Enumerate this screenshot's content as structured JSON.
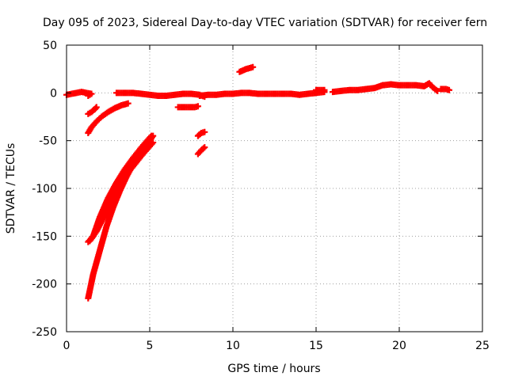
{
  "chart_data": {
    "type": "scatter",
    "title": "Day 095 of 2023, Sidereal Day-to-day VTEC variation (SDTVAR) for receiver fern",
    "xlabel": "GPS time / hours",
    "ylabel": "SDTVAR / TECUs",
    "xlim": [
      0,
      25
    ],
    "ylim": [
      -250,
      50
    ],
    "xticks": [
      0,
      5,
      10,
      15,
      20,
      25
    ],
    "yticks": [
      -250,
      -200,
      -150,
      -100,
      -50,
      0,
      50
    ],
    "grid": true,
    "legend": "none",
    "series_color": "#ff0000",
    "marker": "plus",
    "segments": [
      {
        "name": "",
        "points": [
          [
            0.0,
            -2
          ],
          [
            0.3,
            -1
          ],
          [
            0.6,
            0
          ],
          [
            0.9,
            1
          ],
          [
            1.2,
            0
          ],
          [
            1.5,
            -1
          ],
          [
            1.3,
            -3
          ]
        ]
      },
      {
        "name": "",
        "points": [
          [
            1.3,
            -22
          ],
          [
            1.5,
            -20
          ],
          [
            1.7,
            -17
          ],
          [
            1.8,
            -15
          ]
        ]
      },
      {
        "name": "",
        "points": [
          [
            1.3,
            -42
          ],
          [
            1.5,
            -36
          ],
          [
            1.8,
            -30
          ],
          [
            2.1,
            -25
          ],
          [
            2.5,
            -20
          ],
          [
            2.9,
            -16
          ],
          [
            3.3,
            -13
          ],
          [
            3.7,
            -11
          ]
        ]
      },
      {
        "name": "",
        "points": [
          [
            3.0,
            0
          ],
          [
            3.5,
            0
          ],
          [
            4.0,
            0
          ],
          [
            4.5,
            -1
          ],
          [
            5.0,
            -2
          ],
          [
            5.5,
            -3
          ],
          [
            6.0,
            -3
          ],
          [
            6.5,
            -2
          ],
          [
            7.0,
            -1
          ],
          [
            7.5,
            -1
          ],
          [
            8.0,
            -2
          ],
          [
            8.3,
            -4
          ]
        ]
      },
      {
        "name": "",
        "points": [
          [
            6.7,
            -15
          ],
          [
            7.2,
            -15
          ],
          [
            7.7,
            -15
          ],
          [
            7.9,
            -14
          ]
        ]
      },
      {
        "name": "",
        "points": [
          [
            8.0,
            -3
          ],
          [
            8.5,
            -2
          ],
          [
            9.0,
            -2
          ],
          [
            9.5,
            -1
          ],
          [
            10.0,
            -1
          ],
          [
            10.5,
            0
          ],
          [
            11.0,
            0
          ],
          [
            11.5,
            -1
          ],
          [
            12.0,
            -1
          ],
          [
            12.5,
            -1
          ],
          [
            13.0,
            -1
          ],
          [
            13.5,
            -1
          ],
          [
            14.0,
            -2
          ],
          [
            14.5,
            -1
          ],
          [
            15.0,
            0
          ],
          [
            15.5,
            1
          ]
        ]
      },
      {
        "name": "",
        "points": [
          [
            10.4,
            22
          ],
          [
            10.8,
            25
          ],
          [
            11.2,
            27
          ]
        ]
      },
      {
        "name": "",
        "points": [
          [
            7.9,
            -45
          ],
          [
            8.1,
            -42
          ],
          [
            8.3,
            -41
          ]
        ]
      },
      {
        "name": "",
        "points": [
          [
            7.9,
            -64
          ],
          [
            8.1,
            -60
          ],
          [
            8.3,
            -57
          ]
        ]
      },
      {
        "name": "",
        "points": [
          [
            15.0,
            3
          ],
          [
            15.5,
            3
          ]
        ]
      },
      {
        "name": "",
        "points": [
          [
            16.0,
            1
          ],
          [
            16.5,
            2
          ],
          [
            17.0,
            3
          ],
          [
            17.5,
            3
          ],
          [
            18.0,
            4
          ],
          [
            18.5,
            5
          ],
          [
            19.0,
            8
          ],
          [
            19.5,
            9
          ],
          [
            20.0,
            8
          ],
          [
            20.5,
            8
          ],
          [
            21.0,
            8
          ],
          [
            21.5,
            7
          ],
          [
            21.8,
            10
          ],
          [
            22.0,
            6
          ],
          [
            22.3,
            2
          ]
        ]
      },
      {
        "name": "",
        "points": [
          [
            22.5,
            4
          ],
          [
            22.8,
            4
          ],
          [
            23.0,
            3
          ]
        ]
      },
      {
        "name": "",
        "points": [
          [
            1.3,
            -156
          ],
          [
            1.6,
            -150
          ],
          [
            2.0,
            -130
          ],
          [
            2.5,
            -110
          ],
          [
            3.0,
            -94
          ],
          [
            3.5,
            -80
          ],
          [
            4.0,
            -68
          ],
          [
            4.5,
            -57
          ],
          [
            5.1,
            -45
          ]
        ]
      },
      {
        "name": "",
        "points": [
          [
            1.4,
            -155
          ],
          [
            1.8,
            -145
          ],
          [
            2.3,
            -128
          ],
          [
            2.8,
            -110
          ],
          [
            3.3,
            -95
          ],
          [
            3.6,
            -85
          ],
          [
            4.0,
            -77
          ],
          [
            4.5,
            -66
          ],
          [
            5.0,
            -56
          ],
          [
            5.2,
            -52
          ]
        ]
      },
      {
        "name": "",
        "points": [
          [
            1.3,
            -215
          ],
          [
            1.6,
            -190
          ],
          [
            2.0,
            -165
          ],
          [
            2.4,
            -140
          ],
          [
            2.8,
            -120
          ],
          [
            3.2,
            -103
          ],
          [
            3.6,
            -88
          ],
          [
            4.0,
            -75
          ],
          [
            4.5,
            -62
          ],
          [
            5.2,
            -45
          ]
        ]
      }
    ]
  }
}
